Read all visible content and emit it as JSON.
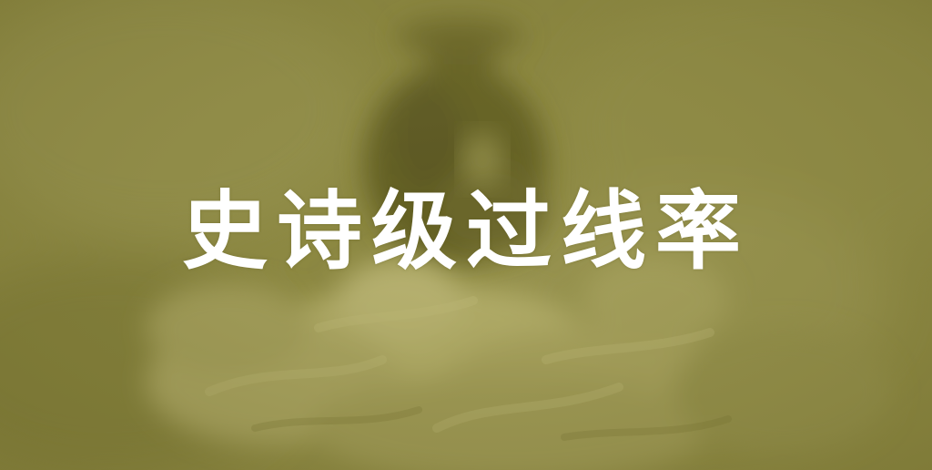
{
  "banner": {
    "title": "史诗级过线率"
  },
  "colors": {
    "overlay_olive": "#8c8842",
    "title_text": "#ffffff"
  }
}
